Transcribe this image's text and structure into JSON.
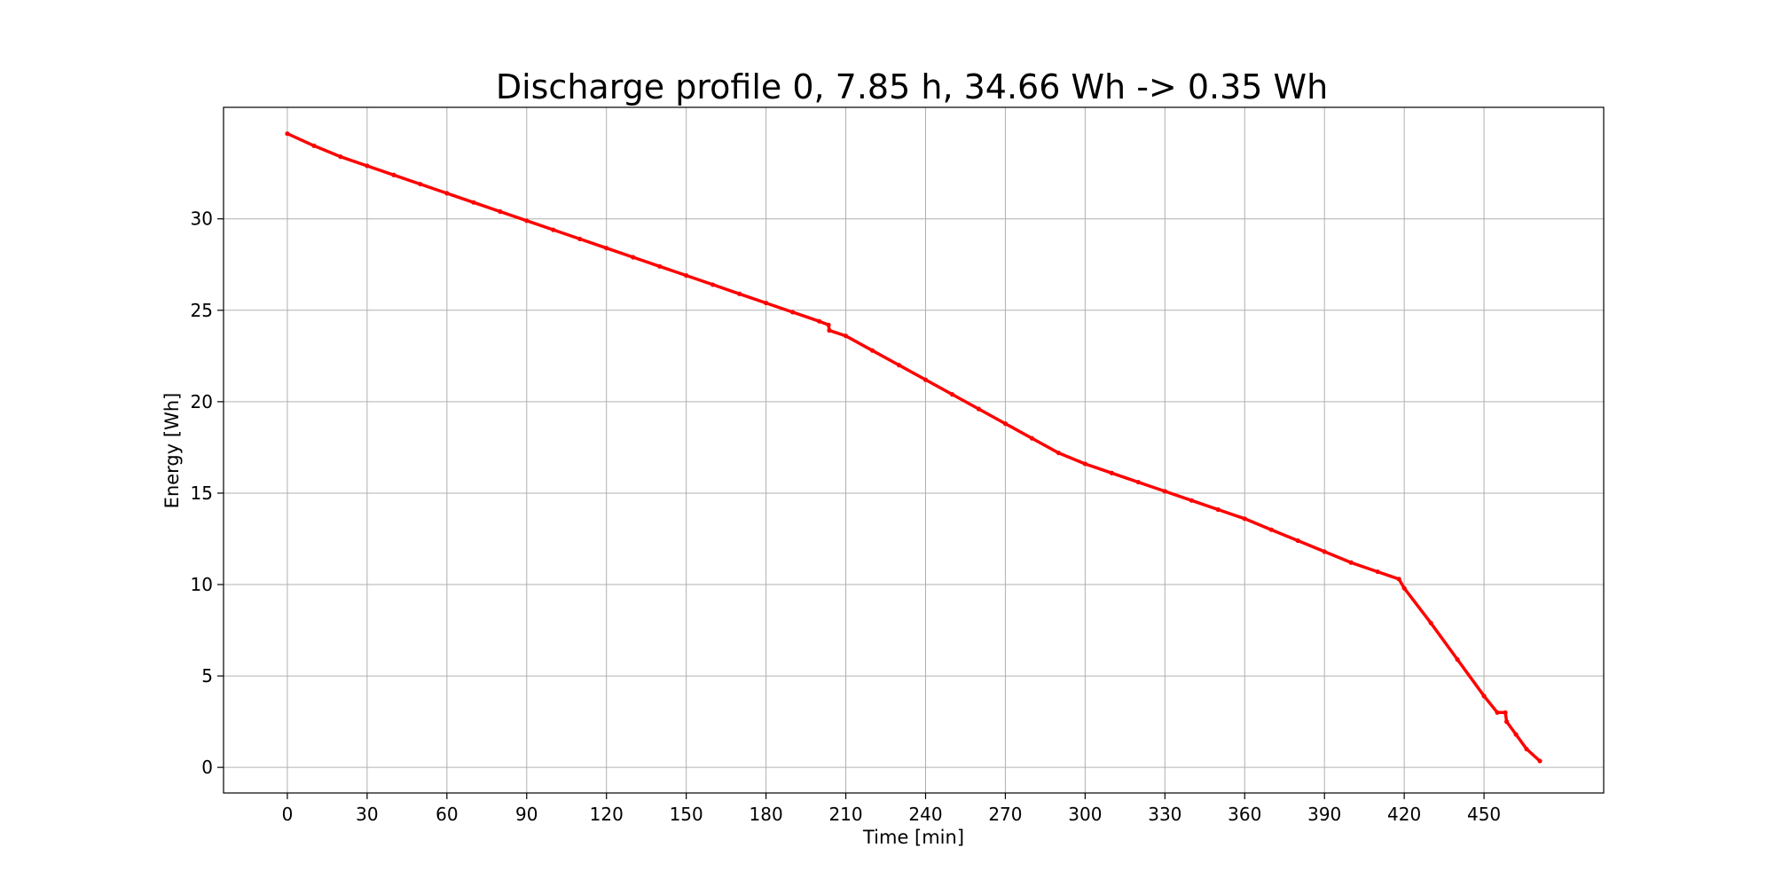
{
  "chart_data": {
    "type": "line",
    "title": "Discharge profile 0, 7.85 h, 34.66 Wh -> 0.35 Wh",
    "xlabel": "Time [min]",
    "ylabel": "Energy [Wh]",
    "xlim": [
      -24,
      495
    ],
    "ylim": [
      -1.4,
      36.1
    ],
    "x_ticks": [
      0,
      30,
      60,
      90,
      120,
      150,
      180,
      210,
      240,
      270,
      300,
      330,
      360,
      390,
      420,
      450
    ],
    "y_ticks": [
      0,
      5,
      10,
      15,
      20,
      25,
      30
    ],
    "grid": true,
    "legend": "none",
    "series": [
      {
        "color": "#ff0000",
        "x": [
          0,
          10,
          20,
          30,
          40,
          50,
          60,
          70,
          80,
          90,
          100,
          110,
          120,
          130,
          140,
          150,
          160,
          170,
          180,
          190,
          200,
          203.5,
          203.8,
          210,
          220,
          230,
          240,
          250,
          260,
          270,
          280,
          290,
          300,
          310,
          320,
          330,
          340,
          350,
          360,
          370,
          380,
          390,
          400,
          410,
          418,
          420,
          430,
          440,
          450,
          455,
          458,
          458.5,
          462,
          466,
          471
        ],
        "y": [
          34.66,
          34.0,
          33.4,
          32.9,
          32.4,
          31.9,
          31.4,
          30.9,
          30.4,
          29.9,
          29.4,
          28.9,
          28.4,
          27.9,
          27.4,
          26.9,
          26.4,
          25.9,
          25.4,
          24.9,
          24.4,
          24.2,
          23.9,
          23.6,
          22.8,
          22.0,
          21.2,
          20.4,
          19.6,
          18.8,
          18.0,
          17.2,
          16.6,
          16.1,
          15.6,
          15.1,
          14.6,
          14.1,
          13.6,
          13.0,
          12.4,
          11.8,
          11.2,
          10.7,
          10.3,
          9.8,
          7.9,
          5.9,
          3.9,
          3.0,
          3.0,
          2.5,
          1.8,
          1.0,
          0.35
        ]
      }
    ]
  }
}
